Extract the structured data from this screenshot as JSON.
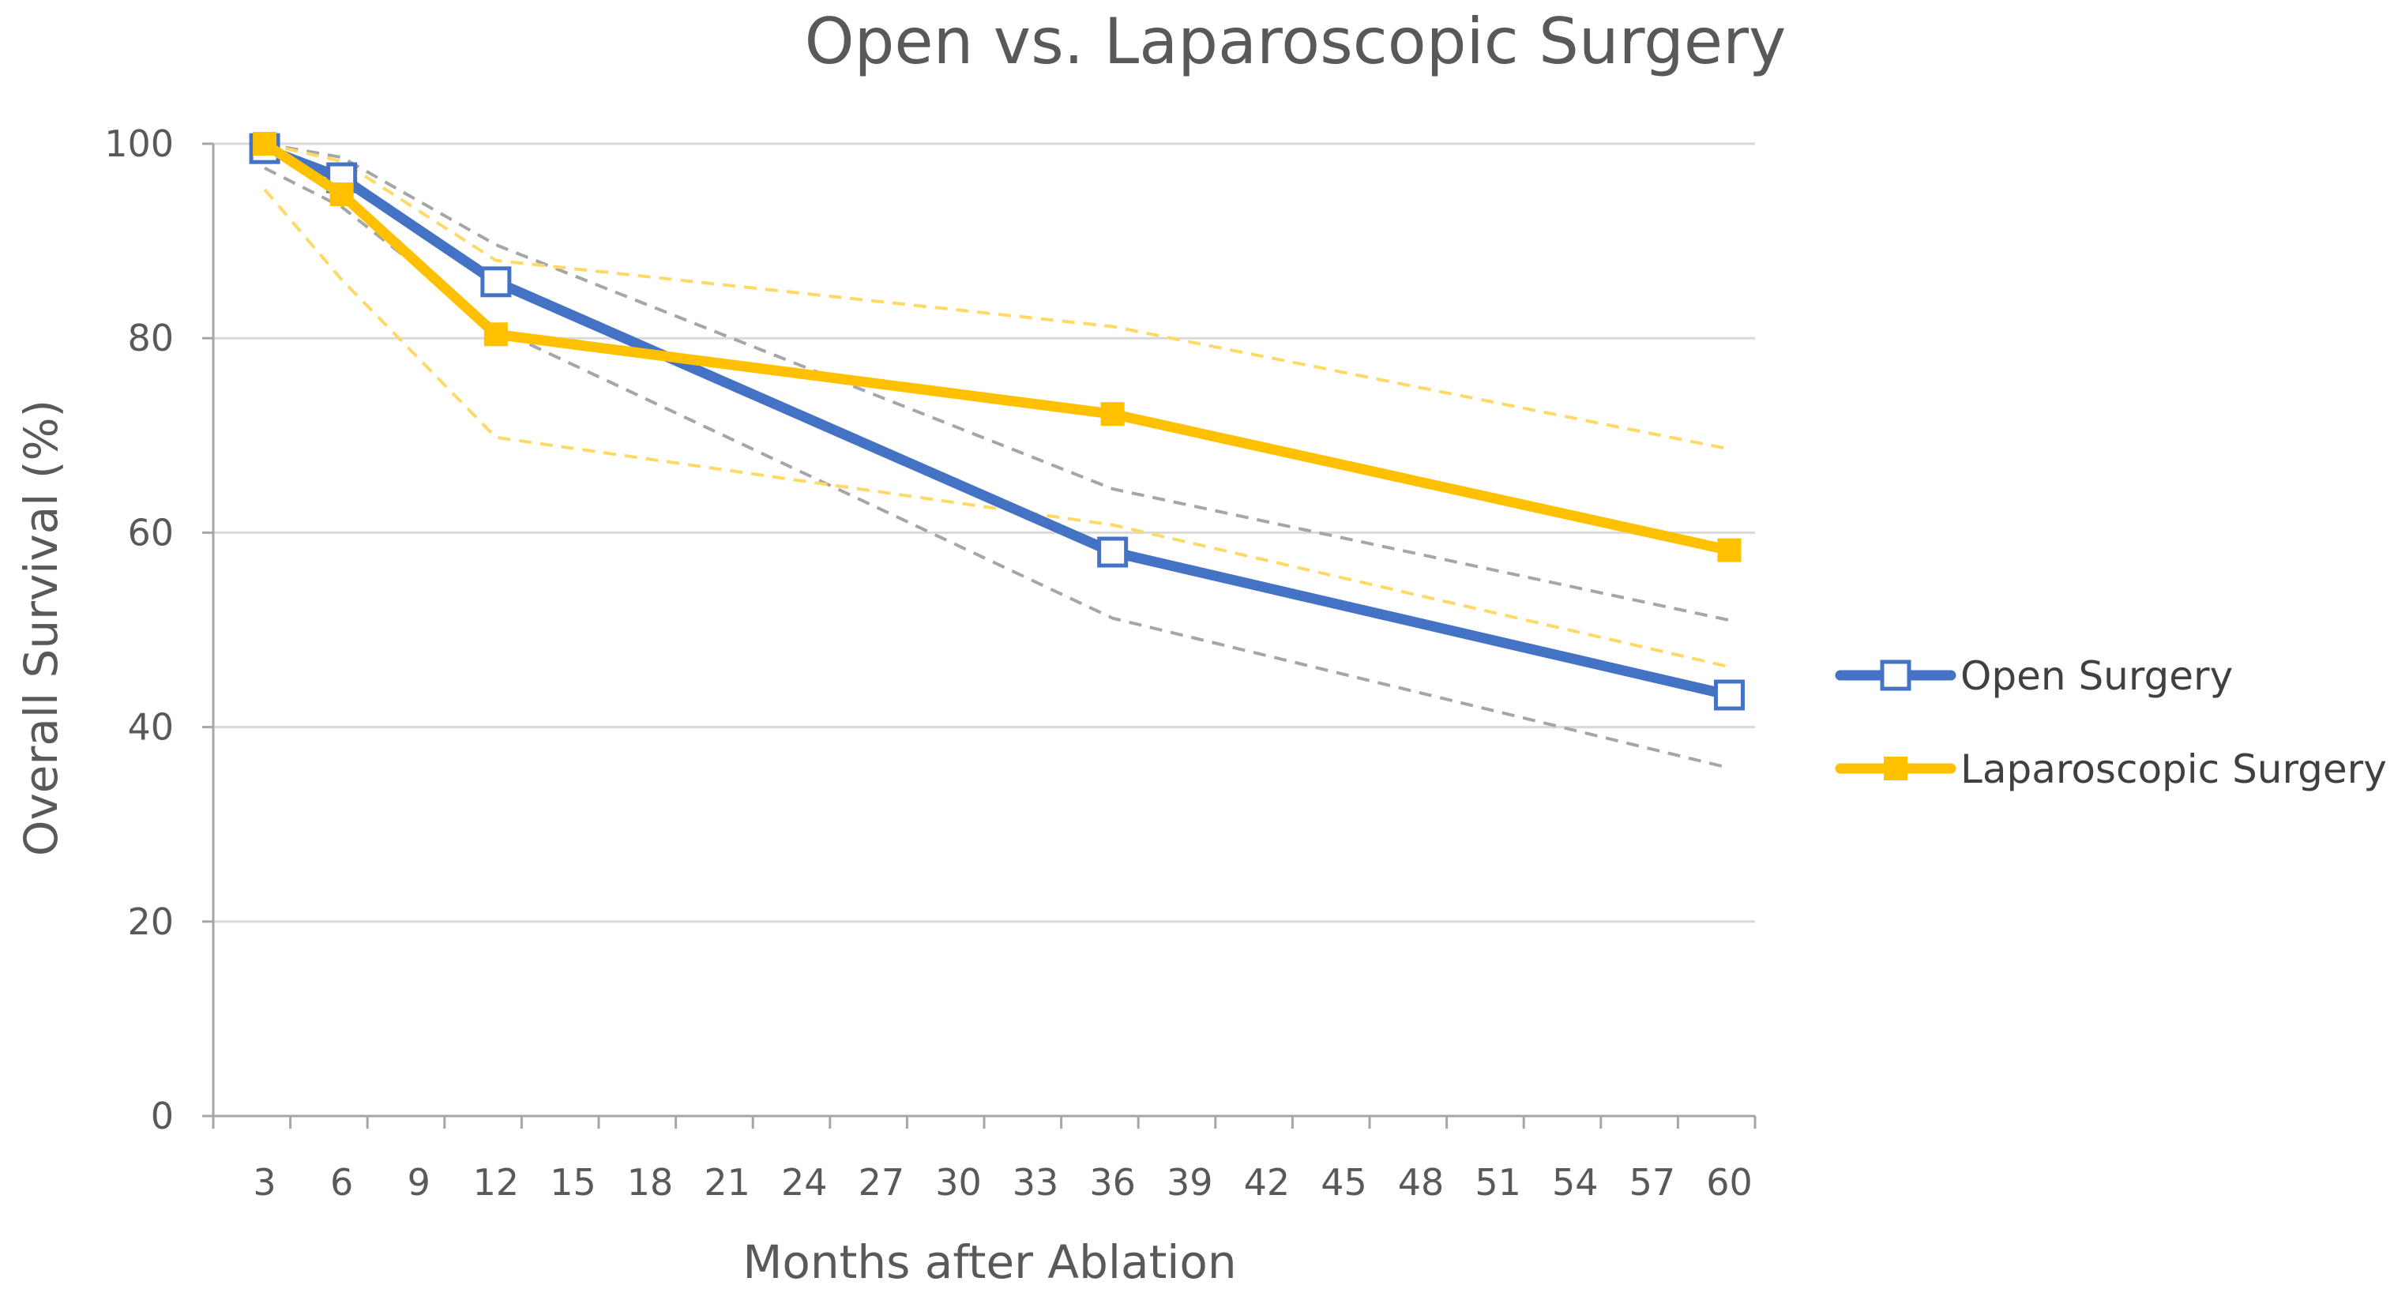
{
  "chart_data": {
    "type": "line",
    "title": "Open vs. Laparoscopic Surgery",
    "xlabel": "Months after Ablation",
    "ylabel": "Overall Survival (%)",
    "xlim": [
      1,
      61
    ],
    "ylim": [
      0,
      100
    ],
    "x_ticks": [
      3,
      6,
      9,
      12,
      15,
      18,
      21,
      24,
      27,
      30,
      33,
      36,
      39,
      42,
      45,
      48,
      51,
      54,
      57,
      60
    ],
    "y_ticks": [
      0,
      20,
      40,
      60,
      80,
      100
    ],
    "grid": "horizontal",
    "legend_position": "right",
    "series": [
      {
        "name": "Open Surgery",
        "color": "#4472c4",
        "marker": "open-square",
        "x": [
          3,
          6,
          12,
          36,
          60
        ],
        "values": [
          99.5,
          96.5,
          85.8,
          58.0,
          43.3
        ]
      },
      {
        "name": "Laparoscopic Surgery",
        "color": "#ffc000",
        "marker": "filled-square",
        "x": [
          3,
          6,
          12,
          36,
          60
        ],
        "values": [
          100,
          94.8,
          80.4,
          72.2,
          58.2
        ]
      }
    ],
    "confidence_bands": [
      {
        "series": "Open Surgery",
        "color": "#a6a6a6",
        "x": [
          3,
          6,
          12,
          36,
          60
        ],
        "upper": [
          100,
          98.6,
          89.6,
          64.5,
          51.0
        ],
        "lower": [
          97.5,
          93.5,
          81.0,
          51.2,
          35.8
        ]
      },
      {
        "series": "Laparoscopic Surgery",
        "color": "#ffd966",
        "x": [
          3,
          6,
          12,
          36,
          60
        ],
        "upper": [
          100,
          98.2,
          88.0,
          81.2,
          68.6
        ],
        "lower": [
          95.3,
          86.0,
          69.8,
          60.8,
          46.2
        ]
      }
    ]
  }
}
